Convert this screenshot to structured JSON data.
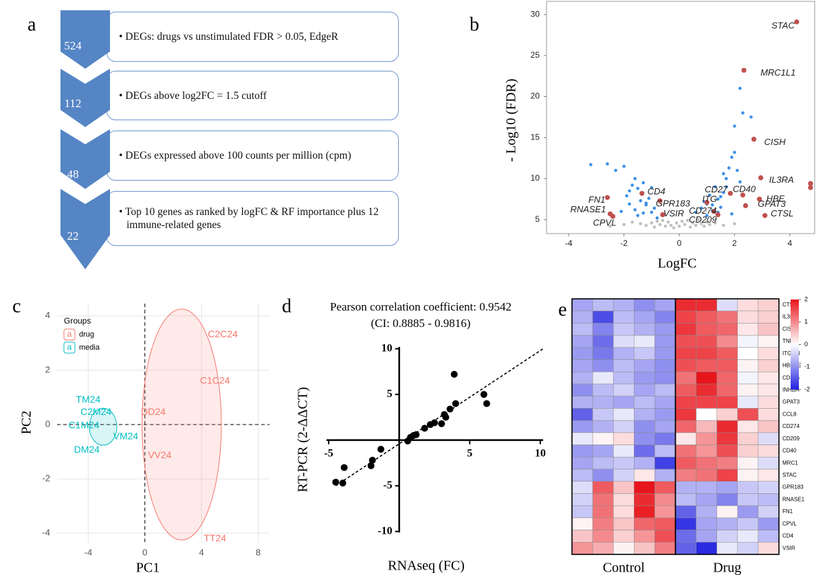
{
  "panel_labels": [
    "a",
    "b",
    "c",
    "d",
    "e"
  ],
  "flowchart": {
    "steps": [
      {
        "count": "524",
        "text": "• DEGs: drugs vs unstimulated FDR > 0.05, EdgeR"
      },
      {
        "count": "112",
        "text": "• DEGs above log2FC = 1.5 cutoff"
      },
      {
        "count": "48",
        "text": "• DEGs expressed above 100 counts per million (cpm)"
      },
      {
        "count": "22",
        "text": "• Top 10 genes as ranked by logFC & RF importance plus 12 immune-related genes"
      }
    ]
  },
  "chart_data": [
    {
      "type": "scatter",
      "frame": "box",
      "xlabel": "LogFC",
      "ylabel": "- Log10 (FDR)",
      "xlim": [
        -4.8,
        4.9
      ],
      "ylim": [
        3.3,
        31.6
      ],
      "xticks": [
        -4,
        -2,
        0,
        2,
        4
      ],
      "yticks": [
        5,
        10,
        15,
        20,
        25,
        30
      ],
      "series": [
        {
          "color": "#c0c0c0",
          "x": [
            -1.4,
            -1.2,
            -1.0,
            -0.9,
            -0.8,
            -0.7,
            -0.6,
            -0.5,
            -0.4,
            -0.3,
            -0.2,
            -0.1,
            0,
            0.1,
            0.2,
            0.3,
            0.4,
            0.5,
            0.6,
            0.7,
            0.8,
            0.9,
            1.0,
            1.1,
            1.3,
            -2.5,
            -2.0,
            -1.7,
            1.6,
            2.0
          ],
          "values": [
            4.5,
            4.3,
            4.6,
            4.1,
            4.8,
            4.4,
            4.9,
            4.2,
            4.7,
            4.3,
            4.0,
            4.6,
            4.2,
            4.8,
            4.4,
            4.9,
            4.1,
            4.6,
            4.3,
            5.0,
            4.5,
            4.2,
            4.7,
            4.4,
            4.6,
            4.2,
            4.4,
            4.7,
            4.3,
            4.5
          ]
        },
        {
          "color": "#3b8fe8",
          "x": [
            -3.2,
            -2.6,
            -2.3,
            -2.0,
            -1.9,
            -1.8,
            -1.7,
            -1.6,
            -1.5,
            -1.4,
            -1.3,
            -1.2,
            -1.1,
            -1.0,
            -0.9,
            -1.6,
            -1.3,
            -1.2,
            -1.8,
            -1.5,
            -2.1,
            -1.0,
            0.6,
            0.8,
            0.9,
            1.0,
            1.1,
            1.2,
            1.3,
            1.4,
            1.5,
            1.6,
            1.7,
            1.8,
            1.9,
            2.0,
            2.1,
            2.2,
            2.0,
            1.7,
            1.5,
            1.2,
            2.2,
            2.6,
            2.3,
            1.6,
            1.9,
            1.0,
            1.4,
            -0.8
          ],
          "values": [
            11.7,
            11.8,
            11.0,
            11.5,
            7.9,
            8.5,
            9.2,
            10.0,
            8.8,
            7.3,
            9.5,
            6.8,
            7.6,
            8.9,
            6.4,
            6.2,
            5.8,
            7.0,
            6.9,
            5.5,
            6.0,
            5.9,
            5.9,
            6.4,
            7.2,
            5.5,
            8.0,
            6.8,
            9.0,
            7.5,
            6.5,
            8.3,
            10.0,
            11.3,
            12.6,
            13.2,
            11.0,
            9.6,
            16.4,
            9.0,
            7.8,
            6.1,
            21.0,
            17.5,
            18.0,
            10.6,
            5.7,
            6.9,
            5.9,
            5.2
          ]
        },
        {
          "color": "#c0504d",
          "x": [
            4.25,
            2.34,
            2.7,
            2.95,
            4.75,
            4.75,
            2.3,
            2.9,
            1.85,
            -1.35,
            -2.6,
            -2.5,
            -0.7,
            1.0,
            -0.6,
            1.25,
            2.4,
            3.1,
            1.4,
            -2.4
          ],
          "values": [
            29.1,
            23.2,
            14.8,
            10.1,
            9.4,
            8.9,
            8.0,
            7.5,
            8.2,
            8.2,
            7.7,
            5.7,
            7.3,
            7.1,
            5.6,
            6.0,
            6.7,
            5.5,
            5.6,
            5.4
          ],
          "labels": [
            "STAC",
            "MRC1L1",
            "CISH",
            "IL3RA",
            null,
            null,
            "CD40",
            "HBE",
            "CD27",
            "CD4",
            "FN1",
            "RNASE1",
            "GPR183",
            "ITG",
            "VSIR",
            "CD274",
            "GPAT3",
            "CTSL",
            "CD209",
            "CPVL"
          ]
        }
      ]
    },
    {
      "type": "scatter",
      "marker": "label",
      "grid": true,
      "zero_lines": true,
      "xlabel": "PC1",
      "ylabel": "PC2",
      "xlim": [
        -6.2,
        8.8
      ],
      "ylim": [
        -4.35,
        4.45
      ],
      "xticks": [
        -4,
        0,
        4,
        8
      ],
      "yticks": [
        -4,
        -2,
        0,
        2,
        4
      ],
      "legend": {
        "title": "Groups",
        "symbol": "a",
        "position": "top-left"
      },
      "series": [
        {
          "name": "drug",
          "color": "#f8766d",
          "labels": [
            "C2C24",
            "C1C24",
            "DD24",
            "VV24",
            "TT24"
          ],
          "x": [
            5.5,
            4.95,
            0.6,
            1.05,
            4.95
          ],
          "values": [
            3.3,
            1.6,
            0.45,
            -1.15,
            -4.2
          ],
          "ellipse": {
            "cx": 2.6,
            "cy": 0,
            "rx": 2.8,
            "ry": 4.25
          }
        },
        {
          "name": "media",
          "color": "#00bfc4",
          "labels": [
            "TM24",
            "C2M24",
            "C1M24",
            "VM24",
            "DM24"
          ],
          "x": [
            -4.0,
            -3.45,
            -4.3,
            -1.35,
            -4.1
          ],
          "values": [
            0.9,
            0.45,
            -0.05,
            -0.45,
            -0.95
          ],
          "ellipse": {
            "cx": -2.95,
            "cy": -0.08,
            "rx": 0.97,
            "ry": 0.68
          }
        }
      ]
    },
    {
      "type": "scatter",
      "frame": "cross",
      "title": "Pearson correlation coefficient: 0.9542",
      "subtitle": "(CI: 0.8885 - 0.9816)",
      "xlabel": "RNAseq (FC)",
      "ylabel": "RT-PCR (2-ΔΔCT)",
      "xlim": [
        -5.15,
        10.2
      ],
      "ylim": [
        -10.1,
        10.2
      ],
      "xticks": [
        -5,
        5,
        10
      ],
      "yticks": [
        -10,
        -5,
        5,
        10
      ],
      "fit": {
        "slope": 1.02,
        "intercept": -0.4
      },
      "series": [
        {
          "color": "#000000",
          "x": [
            -4.5,
            -4.0,
            -3.9,
            -2.0,
            -1.9,
            -1.3,
            0.6,
            0.8,
            1.0,
            1.2,
            1.8,
            2.2,
            2.5,
            3.0,
            3.2,
            3.3,
            3.6,
            4.0,
            3.9,
            6.0,
            6.2
          ],
          "values": [
            -4.6,
            -4.7,
            -3.0,
            -2.8,
            -2.2,
            -1.0,
            -0.1,
            0.3,
            0.5,
            0.6,
            1.3,
            1.7,
            1.9,
            1.8,
            2.8,
            2.5,
            3.4,
            4.0,
            7.2,
            5.0,
            4.0
          ]
        }
      ]
    },
    {
      "type": "heatmap",
      "rows": [
        "CTSL",
        "IL3RA",
        "CISH",
        "TNF",
        "ITGAM",
        "HBEGF",
        "CD276",
        "INHBA",
        "GPAT3",
        "CCL8",
        "CD274",
        "CD209",
        "CD40",
        "MRC1",
        "STAC",
        "GPR183",
        "RNASE1",
        "FN1",
        "CPVL",
        "CD4",
        "VSIR"
      ],
      "colorbar": {
        "lim": [
          -2,
          2
        ],
        "ticks": [
          2,
          1,
          0,
          -1,
          -2
        ],
        "colors": [
          "#1f1fe0",
          "#ffffff",
          "#e8141b"
        ]
      },
      "groups": [
        {
          "name": "Control",
          "values": [
            [
              -0.8,
              -0.6,
              -0.7,
              -1.0,
              -0.8
            ],
            [
              -0.7,
              -1.6,
              -0.6,
              -0.8,
              -1.1
            ],
            [
              -0.6,
              -1.1,
              -0.5,
              -0.7,
              -0.9
            ],
            [
              -0.8,
              -1.3,
              -0.3,
              -0.2,
              -0.9
            ],
            [
              -0.9,
              -1.2,
              -0.7,
              -0.5,
              -0.9
            ],
            [
              -0.8,
              -1.0,
              -0.6,
              -0.8,
              -1.0
            ],
            [
              -0.7,
              -0.2,
              -0.6,
              -0.9,
              -1.0
            ],
            [
              -1.0,
              -0.6,
              -0.4,
              -0.8,
              -0.6
            ],
            [
              -0.7,
              -0.7,
              -0.8,
              -0.6,
              -0.8
            ],
            [
              -1.4,
              -0.5,
              -0.2,
              -0.7,
              -0.9
            ],
            [
              -0.9,
              -0.7,
              -0.4,
              -1.0,
              -0.8
            ],
            [
              -0.2,
              0.1,
              0.3,
              -1.0,
              -1.2
            ],
            [
              -0.9,
              -0.8,
              -0.2,
              -1.3,
              -0.6
            ],
            [
              -0.8,
              -0.6,
              -0.5,
              -0.7,
              -1.7
            ],
            [
              -0.6,
              -1.0,
              -0.4,
              0.2,
              -0.7
            ],
            [
              -0.3,
              1.4,
              0.5,
              2.0,
              1.4
            ],
            [
              -0.4,
              1.2,
              0.3,
              1.8,
              1.0
            ],
            [
              -0.5,
              1.2,
              0.3,
              1.9,
              0.9
            ],
            [
              0.1,
              1.1,
              0.5,
              1.3,
              1.4
            ],
            [
              0.5,
              1.0,
              0.4,
              0.9,
              1.5
            ],
            [
              0.9,
              0.7,
              0.1,
              0.5,
              1.1
            ]
          ]
        },
        {
          "name": "Drug",
          "values": [
            [
              1.8,
              1.8,
              -0.3,
              0.3,
              0.4
            ],
            [
              1.6,
              1.4,
              1.2,
              0.3,
              0.4
            ],
            [
              1.7,
              1.4,
              1.3,
              0.2,
              0.5
            ],
            [
              1.5,
              1.5,
              1.0,
              -0.1,
              0.1
            ],
            [
              1.6,
              1.6,
              1.4,
              0.0,
              0.3
            ],
            [
              1.5,
              1.4,
              1.4,
              0.1,
              0.4
            ],
            [
              1.2,
              2.0,
              1.3,
              -0.1,
              0.2
            ],
            [
              1.4,
              1.8,
              1.3,
              0.1,
              0.2
            ],
            [
              1.6,
              1.6,
              1.6,
              -0.2,
              0.3
            ],
            [
              1.7,
              0.0,
              0.4,
              1.5,
              0.3
            ],
            [
              1.3,
              0.6,
              1.8,
              0.2,
              0.5
            ],
            [
              0.2,
              0.9,
              1.7,
              0.4,
              -0.3
            ],
            [
              1.2,
              0.9,
              1.5,
              0.4,
              0.3
            ],
            [
              1.4,
              1.2,
              1.1,
              0.1,
              -0.3
            ],
            [
              1.1,
              1.2,
              1.6,
              0.1,
              0.2
            ],
            [
              -0.7,
              -0.7,
              -0.8,
              -0.5,
              -0.4
            ],
            [
              -0.6,
              -0.8,
              -1.1,
              -0.5,
              -0.6
            ],
            [
              -1.4,
              -0.7,
              0.1,
              -0.9,
              -0.4
            ],
            [
              -1.8,
              -0.8,
              -0.7,
              -0.5,
              -0.9
            ],
            [
              -1.3,
              -0.8,
              -0.4,
              -0.2,
              -0.6
            ],
            [
              -1.4,
              -1.9,
              -0.2,
              -0.4,
              0.3
            ]
          ]
        }
      ]
    }
  ]
}
